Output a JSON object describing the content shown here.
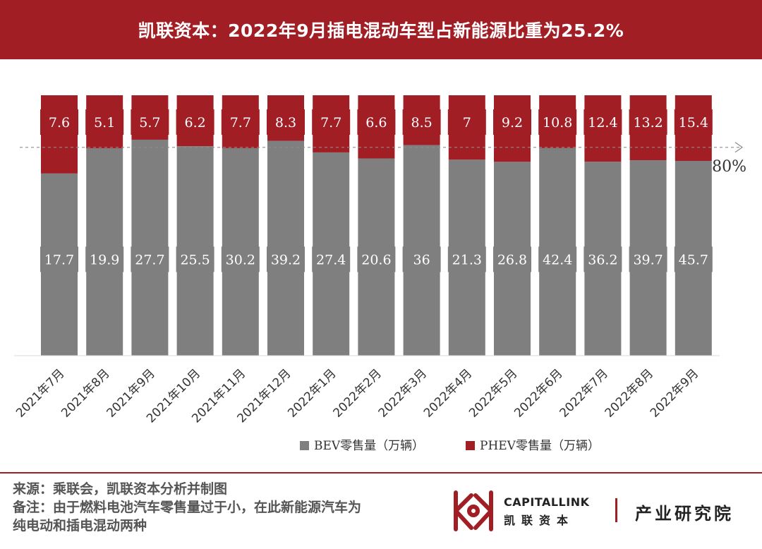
{
  "header": {
    "title": "凯联资本：2022年9月插电混动车型占新能源比重为25.2%"
  },
  "chart_data": {
    "type": "bar",
    "stacked": true,
    "normalized_percent": true,
    "categories": [
      "2021年7月",
      "2021年8月",
      "2021年9月",
      "2021年10月",
      "2021年11月",
      "2021年12月",
      "2022年1月",
      "2022年2月",
      "2022年3月",
      "2022年4月",
      "2022年5月",
      "2022年6月",
      "2022年7月",
      "2022年8月",
      "2022年9月"
    ],
    "series": [
      {
        "name": "BEV零售量（万辆）",
        "color": "#7f7f7f",
        "values": [
          17.7,
          19.9,
          27.7,
          25.5,
          30.2,
          39.2,
          27.4,
          20.6,
          36,
          21.3,
          26.8,
          42.4,
          36.2,
          39.7,
          45.7
        ]
      },
      {
        "name": "PHEV零售量（万辆）",
        "color": "#a11e25",
        "values": [
          7.6,
          5.1,
          5.7,
          6.2,
          7.7,
          8.3,
          7.7,
          6.6,
          8.5,
          7,
          9.2,
          10.8,
          12.4,
          13.2,
          15.4
        ]
      }
    ],
    "reference_line": {
      "value": 80,
      "label": "80%"
    },
    "ylim": [
      0,
      100
    ],
    "legend_position": "bottom"
  },
  "footer": {
    "source": "来源：乘联会，凯联资本分析并制图",
    "note_line1": "备注：由于燃料电池汽车零售量过于小，在此新能源汽车为",
    "note_line2": "纯电动和插电混动两种"
  },
  "logo": {
    "name_en": "CAPITALLINK",
    "name_cn": "凯联资本",
    "subtitle": "产业研究院"
  }
}
